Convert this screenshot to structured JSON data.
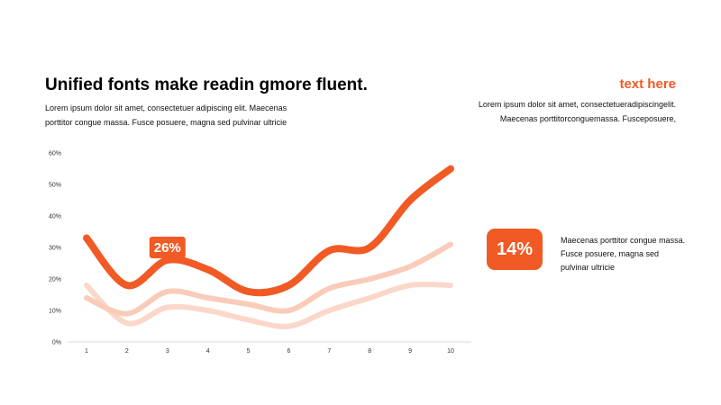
{
  "header": {
    "title": "Unified fonts make readin gmore fluent.",
    "subtitle": "Lorem ipsum dolor sit amet, consectetuer adipiscing elit. Maecenas porttitor congue massa. Fusce posuere, magna sed pulvinar ultricie"
  },
  "side": {
    "heading": "text here",
    "text": "Lorem ipsum dolor sit amet, consectetueradipiscingelit. Maecenas porttitorconguemassa. Fusceposuere,"
  },
  "badge": {
    "value": "14%",
    "text": "Maecenas porttitor congue massa. Fusce posuere, magna sed pulvinar ultricie"
  },
  "colors": {
    "accent": "#f15a24",
    "series": [
      "#f15a24",
      "#f9cbb9",
      "#fbd7ca"
    ]
  },
  "chart_data": {
    "type": "line",
    "x": [
      1,
      2,
      3,
      4,
      5,
      6,
      7,
      8,
      9,
      10
    ],
    "xticks": [
      "1",
      "2",
      "3",
      "4",
      "5",
      "6",
      "7",
      "8",
      "9",
      "10"
    ],
    "yticks": [
      "0%",
      "10%",
      "20%",
      "30%",
      "40%",
      "50%",
      "60%"
    ],
    "ylim": [
      0,
      60
    ],
    "series": [
      {
        "values": [
          33,
          18,
          26,
          23,
          16,
          18,
          29,
          30,
          45,
          55
        ]
      },
      {
        "values": [
          14,
          9,
          16,
          14,
          12,
          10,
          17,
          20,
          24,
          31
        ]
      },
      {
        "values": [
          18,
          6,
          11,
          10,
          7,
          5,
          10,
          14,
          18,
          18
        ]
      }
    ],
    "annotations": [
      {
        "label": "26%",
        "series": 0,
        "x": 3
      }
    ]
  }
}
